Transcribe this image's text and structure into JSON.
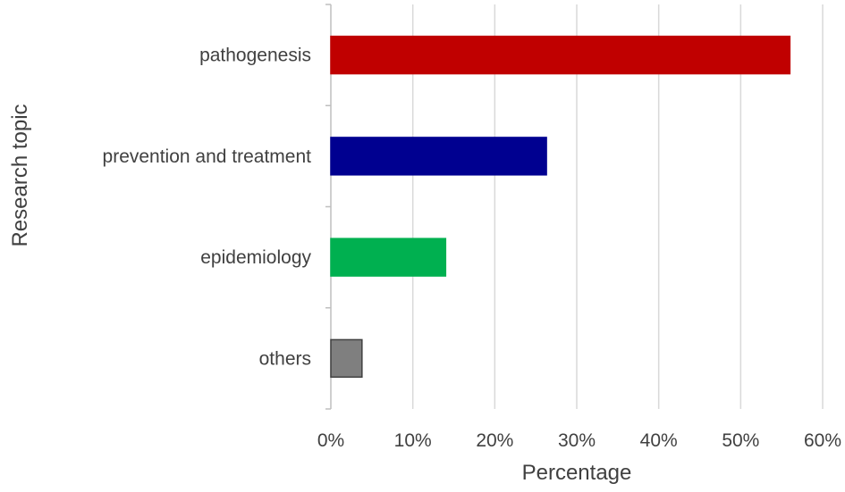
{
  "chart_data": {
    "type": "bar",
    "orientation": "horizontal",
    "title": "",
    "xlabel": "Percentage",
    "ylabel": "Research topic",
    "xlim": [
      0,
      60
    ],
    "x_ticks": [
      "0%",
      "10%",
      "20%",
      "30%",
      "40%",
      "50%",
      "60%"
    ],
    "categories": [
      "pathogenesis",
      "prevention and treatment",
      "epidemiology",
      "others"
    ],
    "values": [
      56,
      26.3,
      14,
      3.8
    ],
    "colors": [
      "#c00000",
      "#000090",
      "#00b050",
      "#7f7f7f"
    ],
    "bar_outline_colors": [
      "#c00000",
      "#000090",
      "#00b050",
      "#404040"
    ],
    "grid": "vertical",
    "legend": "none"
  }
}
